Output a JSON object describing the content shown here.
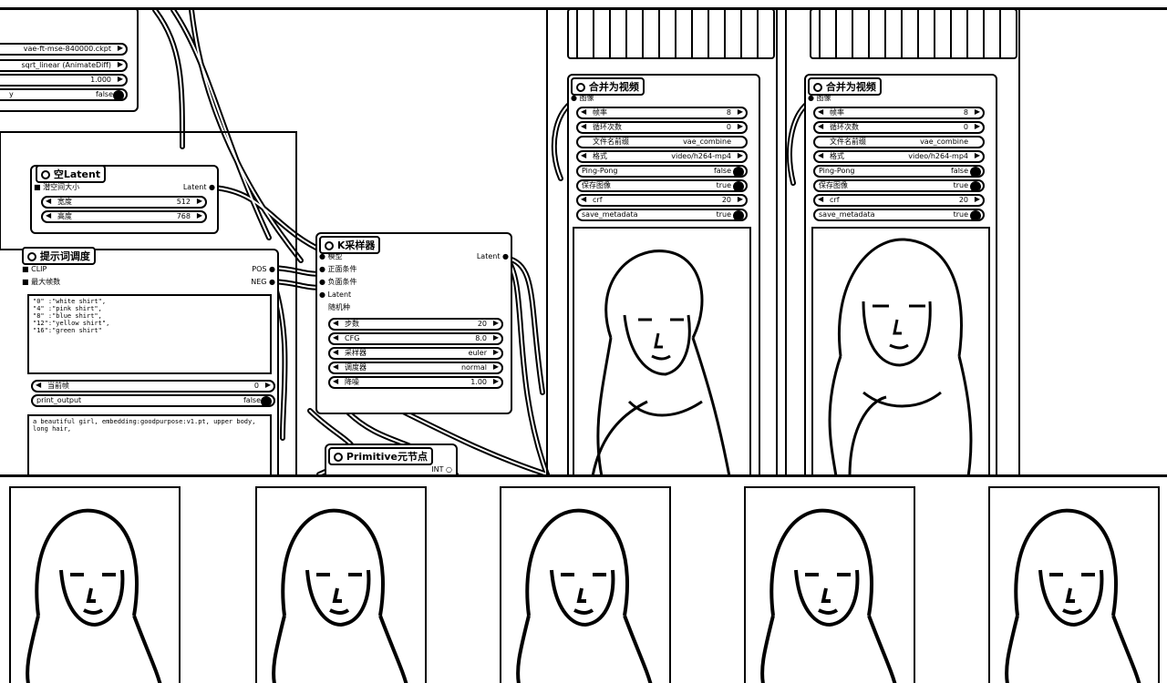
{
  "top_nodes": {
    "model_widgets": [
      "vae-ft-mse-840000.ckpt",
      "sqrt_linear (AnimateDiff)",
      "1.000",
      "false"
    ],
    "latent": {
      "title": "空Latent",
      "port_in": "潜空间大小",
      "port_out": "Latent",
      "width_label": "宽度",
      "width_value": "512",
      "height_label": "高度",
      "height_value": "768"
    },
    "prompt": {
      "title": "提示词调度",
      "port_clip": "CLIP",
      "port_max": "最大帧数",
      "out_pos": "POS",
      "out_neg": "NEG",
      "text": "\"0\" :\"white shirt\",\n\"4\" :\"pink shirt\",\n\"8\" :\"blue shirt\",\n\"12\":\"yellow shirt\",\n\"16\":\"green shirt\"",
      "w1_label": "当前帧",
      "w1_value": "0",
      "w2_label": "print_output",
      "w2_value": "false",
      "bottom_text": "a beautiful girl, embedding:goodpurpose:v1.pt, upper body, long hair,"
    },
    "ksampler": {
      "title": "K采样器",
      "ports_in": [
        "模型",
        "正面条件",
        "负面条件",
        "Latent"
      ],
      "port_out": "Latent",
      "seed_label": "随机种",
      "widgets": [
        {
          "label": "步数",
          "value": "20"
        },
        {
          "label": "CFG",
          "value": "8.0"
        },
        {
          "label": "采样器",
          "value": "euler"
        },
        {
          "label": "调度器",
          "value": "normal"
        },
        {
          "label": "降噪",
          "value": "1.00"
        }
      ]
    },
    "primitive": {
      "title": "Primitive元节点",
      "port_out": "INT"
    },
    "video_a": {
      "title": "合并为视频",
      "port_in": "图像",
      "widgets": [
        {
          "label": "帧率",
          "value": "8"
        },
        {
          "label": "循环次数",
          "value": "0"
        },
        {
          "label": "文件名前缀",
          "value": "vae_combine"
        },
        {
          "label": "格式",
          "value": "video/h264-mp4"
        },
        {
          "label": "Ping-Pong",
          "value": "false",
          "toggle": true
        },
        {
          "label": "保存图像",
          "value": "true",
          "toggle": true
        },
        {
          "label": "crf",
          "value": "20"
        },
        {
          "label": "save_metadata",
          "value": "true",
          "toggle": true
        }
      ]
    },
    "video_b": {
      "title": "合并为视频",
      "port_in": "图像",
      "widgets": [
        {
          "label": "帧率",
          "value": "8"
        },
        {
          "label": "循环次数",
          "value": "0"
        },
        {
          "label": "文件名前缀",
          "value": "vae_combine"
        },
        {
          "label": "格式",
          "value": "video/h264-mp4"
        },
        {
          "label": "Ping-Pong",
          "value": "false",
          "toggle": true
        },
        {
          "label": "保存图像",
          "value": "true",
          "toggle": true
        },
        {
          "label": "crf",
          "value": "20"
        },
        {
          "label": "save_metadata",
          "value": "true",
          "toggle": true
        }
      ]
    }
  },
  "thumbnails": [
    "frame-1",
    "frame-2",
    "frame-3",
    "frame-4",
    "frame-5"
  ]
}
